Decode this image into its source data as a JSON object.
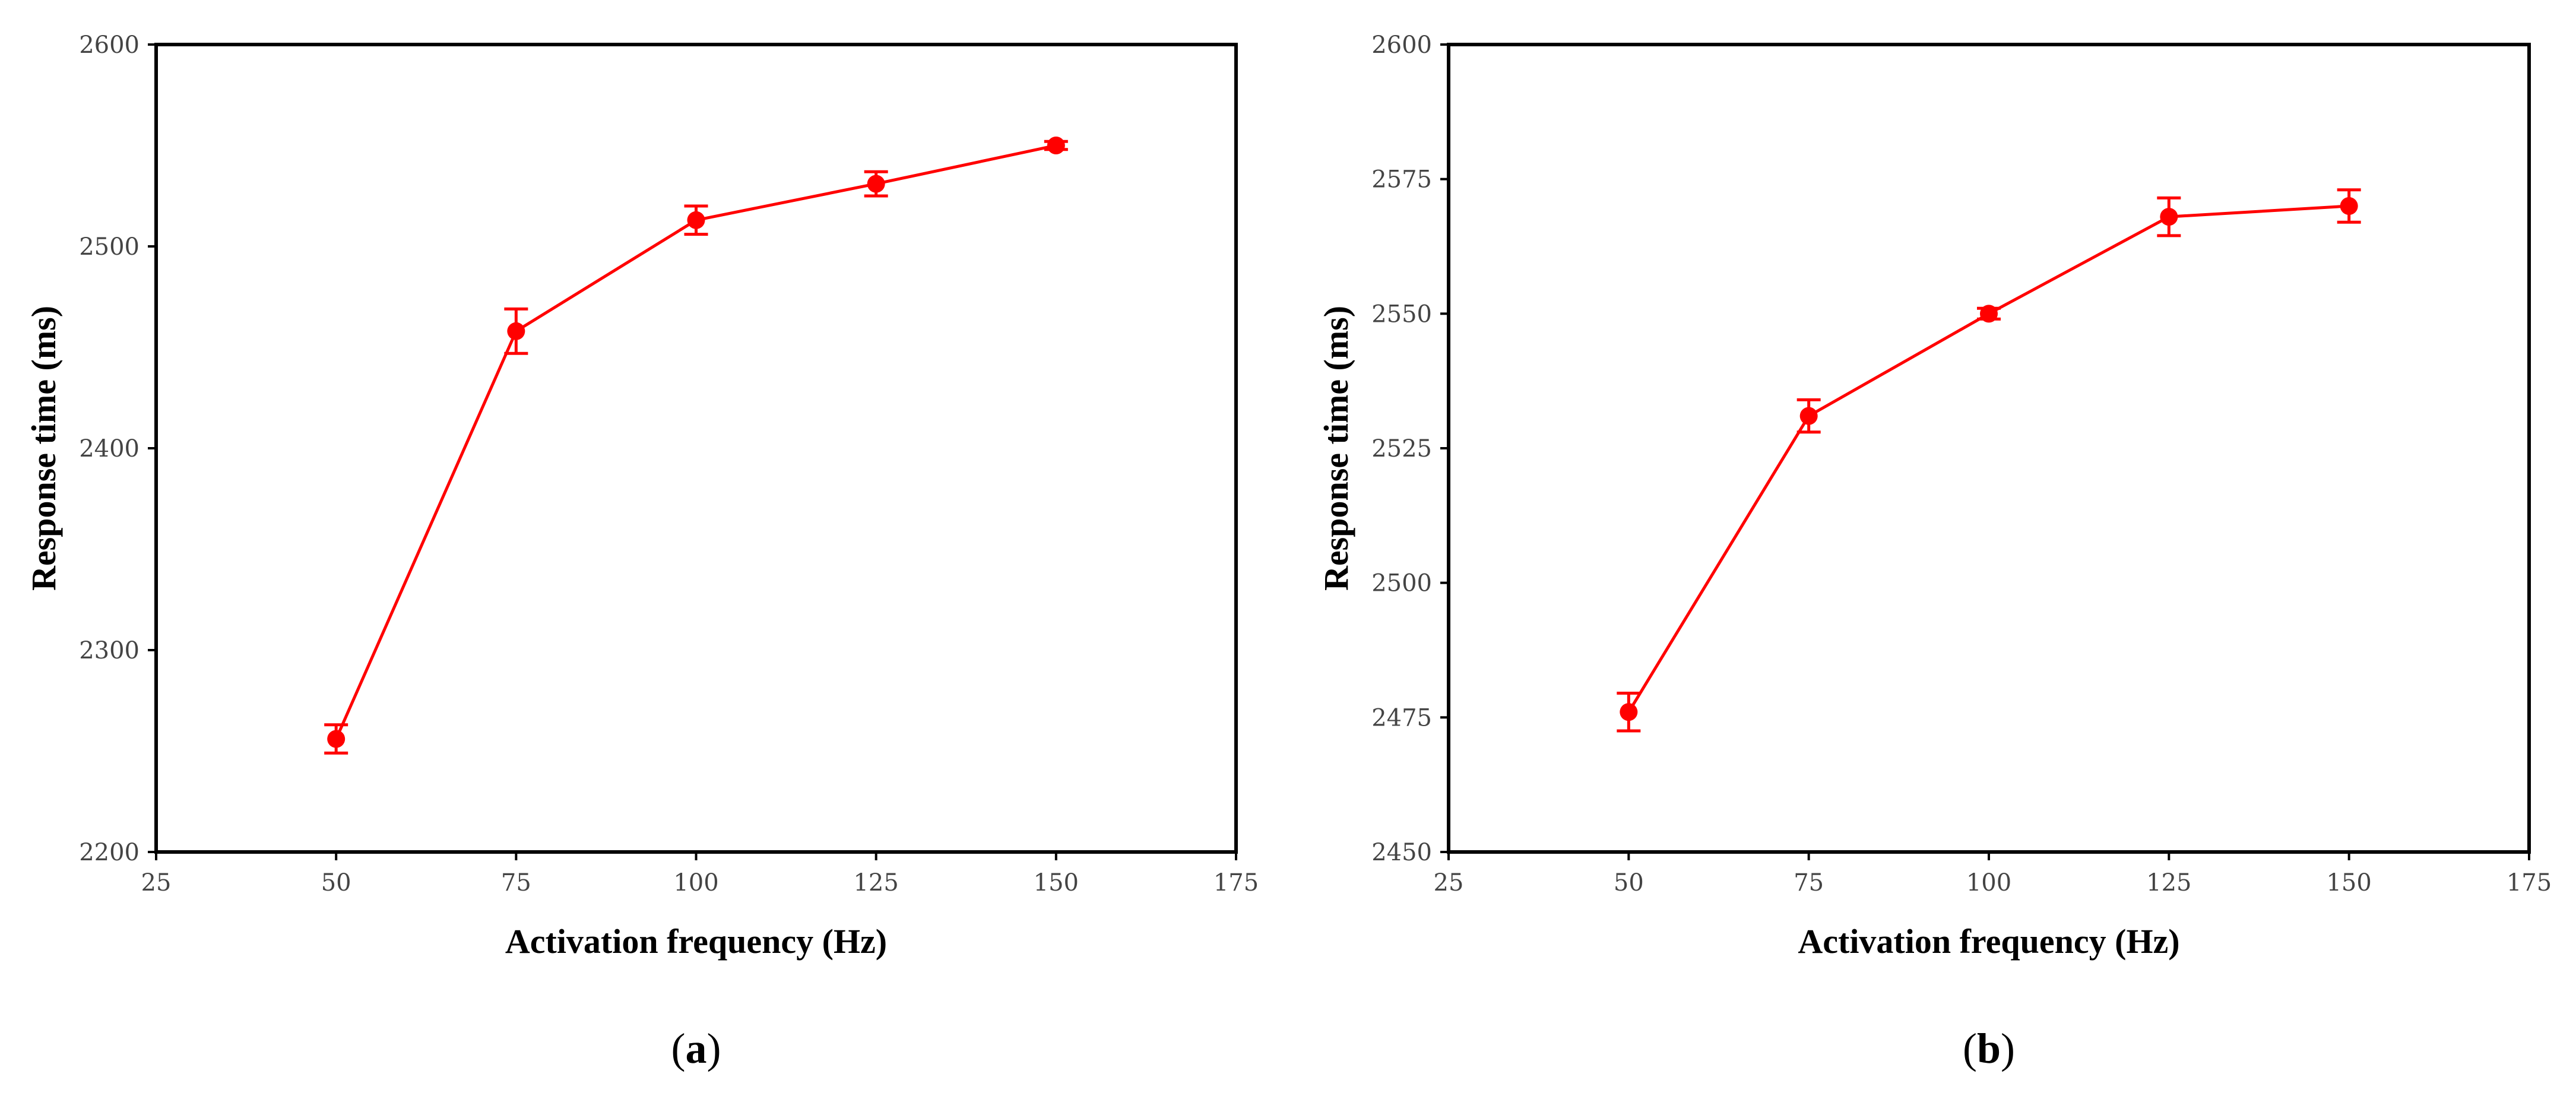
{
  "chart_data": [
    {
      "type": "line",
      "panel_label": "a",
      "xlabel": "Activation frequency (Hz)",
      "ylabel": "Response time (ms)",
      "xlim": [
        25,
        175
      ],
      "ylim": [
        2200,
        2600
      ],
      "xticks": [
        25,
        50,
        75,
        100,
        125,
        150,
        175
      ],
      "yticks": [
        2200,
        2300,
        2400,
        2500,
        2600
      ],
      "grid": false,
      "color": "#ff0000",
      "series": [
        {
          "x": [
            50,
            75,
            100,
            125,
            150
          ],
          "y": [
            2256,
            2458,
            2513,
            2531,
            2550
          ],
          "error": [
            7,
            11,
            7,
            6,
            2
          ]
        }
      ]
    },
    {
      "type": "line",
      "panel_label": "b",
      "xlabel": "Activation frequency (Hz)",
      "ylabel": "Response time (ms)",
      "xlim": [
        25,
        175
      ],
      "ylim": [
        2450,
        2600
      ],
      "xticks": [
        25,
        50,
        75,
        100,
        125,
        150,
        175
      ],
      "yticks": [
        2450,
        2475,
        2500,
        2525,
        2550,
        2575,
        2600
      ],
      "grid": false,
      "color": "#ff0000",
      "series": [
        {
          "x": [
            50,
            75,
            100,
            125,
            150
          ],
          "y": [
            2476,
            2531,
            2550,
            2568,
            2570
          ],
          "error": [
            3.5,
            3,
            1,
            3.5,
            3
          ]
        }
      ]
    }
  ]
}
